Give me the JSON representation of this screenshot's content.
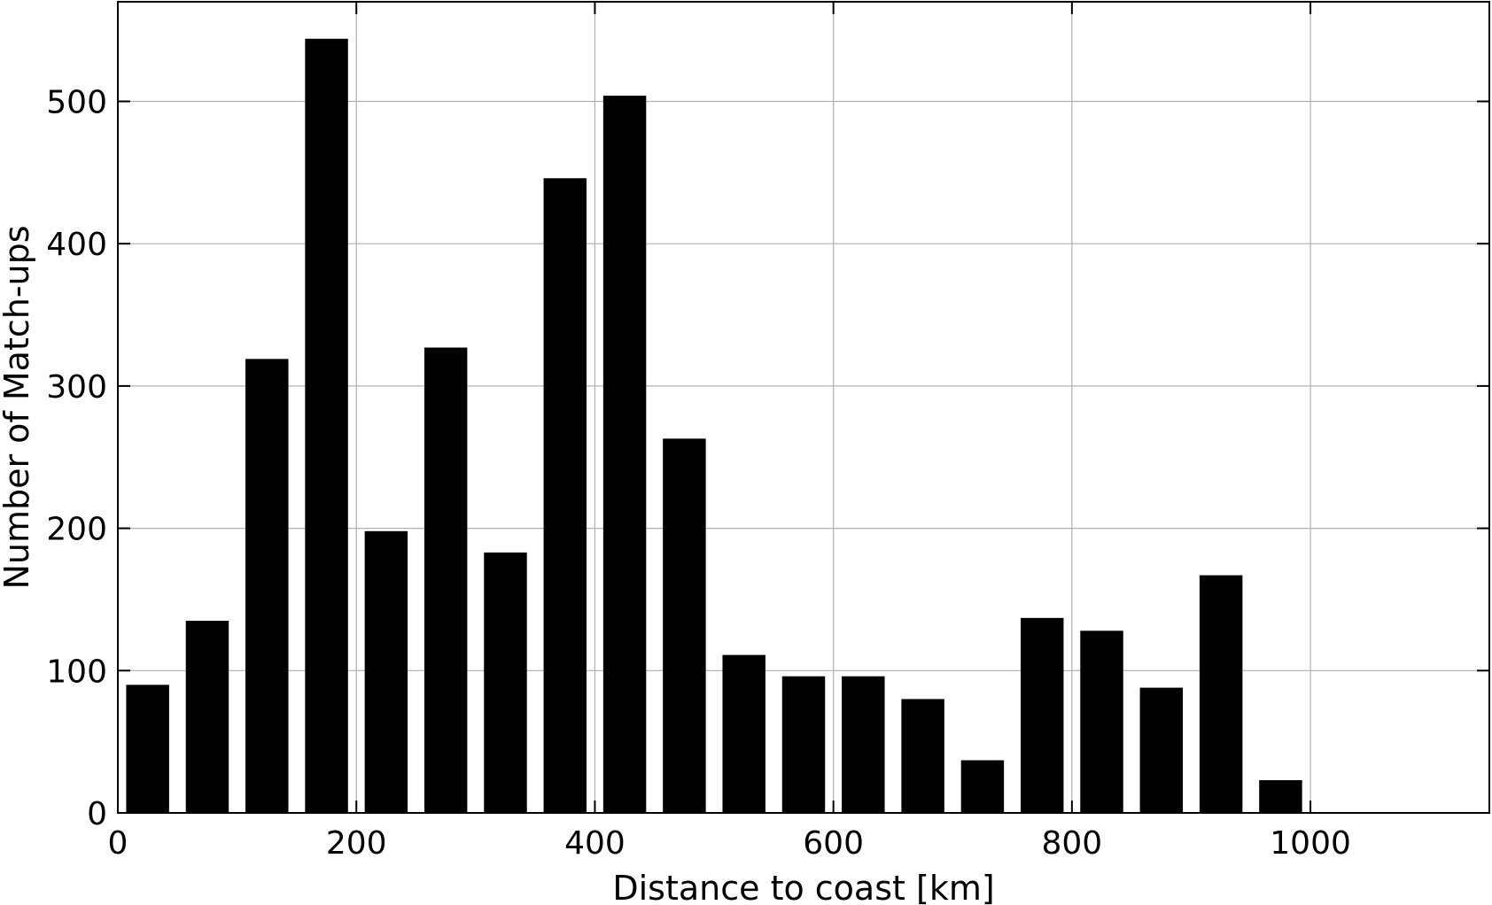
{
  "chart_data": {
    "type": "bar",
    "xlabel": "Distance to coast [km]",
    "ylabel": "Number of Match-ups",
    "xlim": [
      0,
      1150
    ],
    "ylim": [
      0,
      570
    ],
    "bin_width": 50,
    "bar_width": 36,
    "x": [
      25,
      75,
      125,
      175,
      225,
      275,
      325,
      375,
      425,
      475,
      525,
      575,
      625,
      675,
      725,
      775,
      825,
      875,
      925,
      975
    ],
    "values": [
      90,
      135,
      319,
      544,
      198,
      327,
      183,
      446,
      504,
      263,
      111,
      96,
      96,
      80,
      37,
      137,
      128,
      88,
      167,
      23
    ],
    "xticks": [
      0,
      200,
      400,
      600,
      800,
      1000
    ],
    "yticks": [
      0,
      100,
      200,
      300,
      400,
      500
    ],
    "xtick_labels": [
      "0",
      "200",
      "400",
      "600",
      "800",
      "1000"
    ],
    "ytick_labels": [
      "0",
      "100",
      "200",
      "300",
      "400",
      "500"
    ],
    "grid": true,
    "bar_color": "#000000",
    "grid_color": "#b0b0b0"
  }
}
